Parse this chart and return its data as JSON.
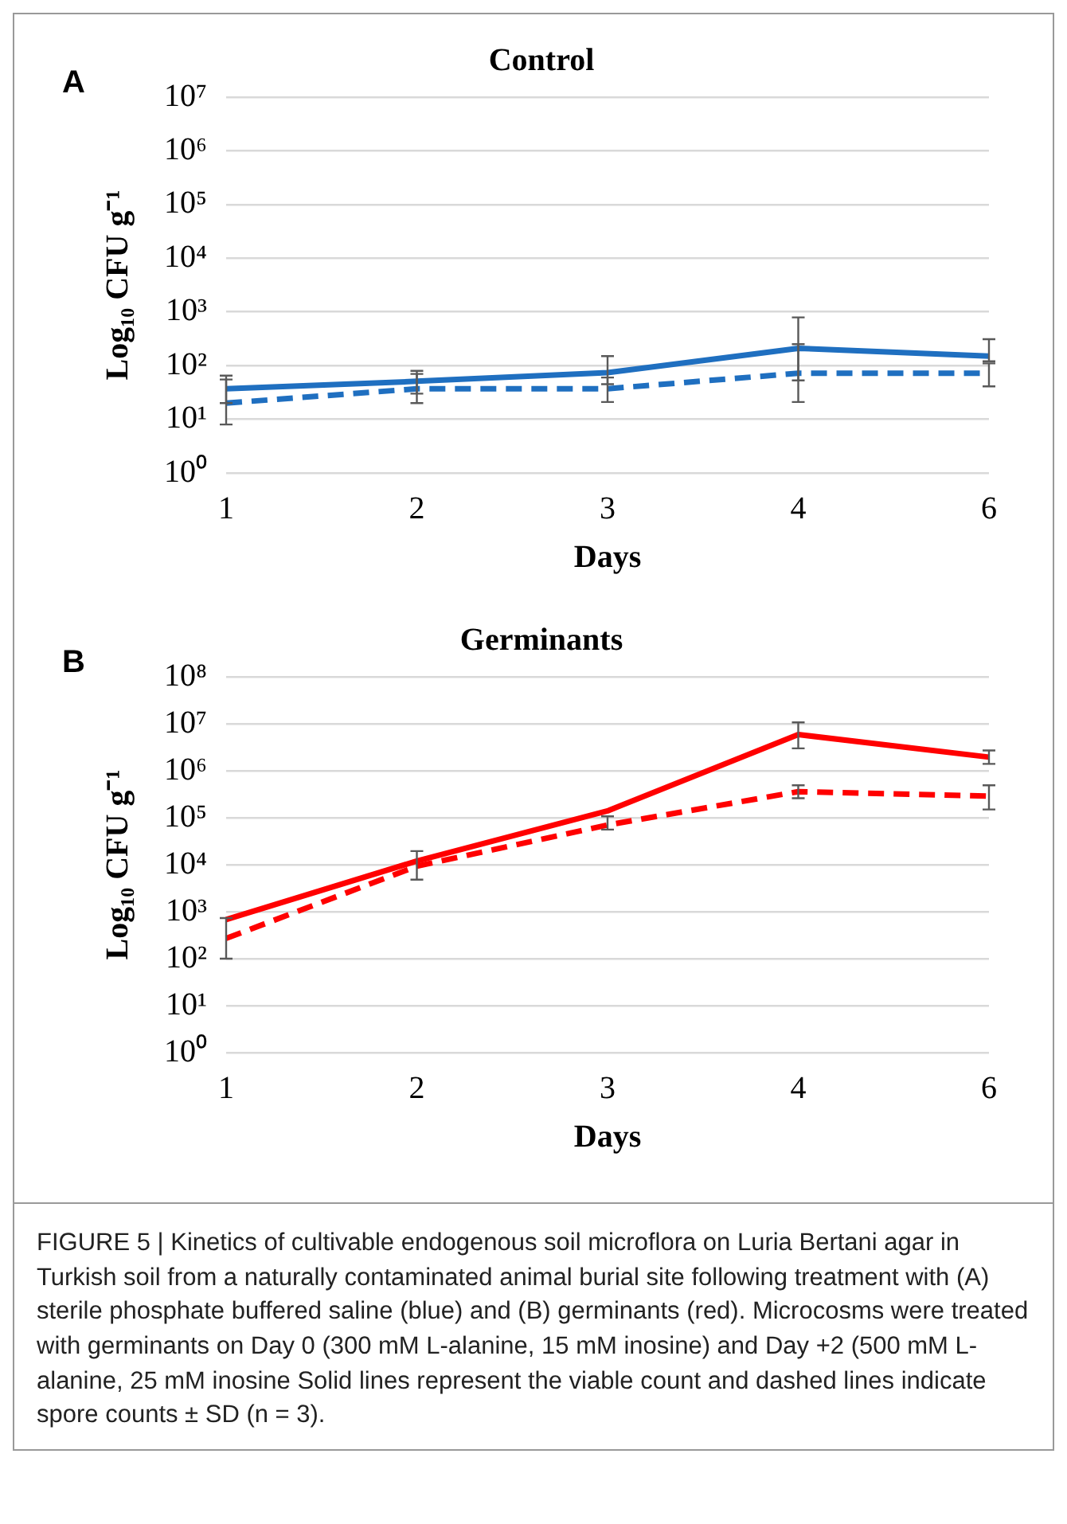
{
  "chart_data": [
    {
      "type": "line",
      "title": "Control",
      "xlabel": "Days",
      "ylabel": "Log₁₀ CFU g⁻¹",
      "annotations": [
        "A"
      ],
      "categories": [
        "1",
        "2",
        "3",
        "4",
        "6"
      ],
      "log": "y",
      "grid": "y",
      "marker": "none",
      "ylim": [
        1,
        10000000
      ],
      "yticks": [
        {
          "value": 1,
          "label": "10⁰"
        },
        {
          "value": 10,
          "label": "10¹"
        },
        {
          "value": 100,
          "label": "10²"
        },
        {
          "value": 1000,
          "label": "10³"
        },
        {
          "value": 10000,
          "label": "10⁴"
        },
        {
          "value": 100000,
          "label": "10⁵"
        },
        {
          "value": 1000000,
          "label": "10⁶"
        },
        {
          "value": 10000000,
          "label": "10⁷"
        }
      ],
      "series": [
        {
          "color": "#1f6fc0",
          "line_style": "solid",
          "values": [
            37,
            51,
            74,
            210,
            150
          ],
          "errors": [
            [
              20,
              65
            ],
            [
              30,
              80
            ],
            [
              45,
              150
            ],
            [
              53,
              790
            ],
            [
              120,
              310
            ]
          ]
        },
        {
          "color": "#1f6fc0",
          "line_style": "dashed",
          "values": [
            20,
            37,
            37,
            72,
            72
          ],
          "errors": [
            [
              8,
              55
            ],
            [
              20,
              70
            ],
            [
              21,
              60
            ],
            [
              21,
              250
            ],
            [
              41,
              110
            ]
          ]
        }
      ]
    },
    {
      "type": "line",
      "title": "Germinants",
      "xlabel": "Days",
      "ylabel": "Log₁₀ CFU g⁻¹",
      "categories": [
        "1",
        "2",
        "3",
        "4",
        "6"
      ],
      "log": "y",
      "grid": "y",
      "marker": "none",
      "ylim": [
        1,
        100000000
      ],
      "yticks": [
        {
          "value": 1,
          "label": "10⁰"
        },
        {
          "value": 10,
          "label": "10¹"
        },
        {
          "value": 100,
          "label": "10²"
        },
        {
          "value": 1000,
          "label": "10³"
        },
        {
          "value": 10000,
          "label": "10⁴"
        },
        {
          "value": 100000,
          "label": "10⁵"
        },
        {
          "value": 1000000,
          "label": "10⁶"
        },
        {
          "value": 10000000,
          "label": "10⁷"
        },
        {
          "value": 100000000,
          "label": "10⁸"
        }
      ],
      "annotations": [
        "B",
        "FIGURE 5 | Kinetics of cultivable endogenous soil microflora on Luria Bertani agar in Turkish soil from a naturally contaminated animal burial site following treatment with (A) sterile phosphate buffered saline (blue) and (B) germinants (red). Microcosms were treated with germinants on Day 0 (300 mM L-alanine, 15 mM inosine) and Day +2 (500 mM L-alanine, 25 mM inosine Solid lines represent the viable count and dashed lines indicate spore counts ± SD (n = 3)."
      ],
      "series": [
        {
          "color": "#ff0000",
          "line_style": "solid",
          "values": [
            680,
            12000,
            140000,
            5900000,
            1950000
          ],
          "errors": [
            null,
            null,
            null,
            [
              3000000,
              10700000
            ],
            [
              1400000,
              2700000
            ]
          ]
        },
        {
          "color": "#ff0000",
          "line_style": "dashed",
          "values": [
            270,
            9300,
            70000,
            360000,
            290000
          ],
          "errors": [
            [
              100,
              730
            ],
            [
              4800,
              19500
            ],
            [
              56000,
              107000
            ],
            [
              260000,
              490000
            ],
            [
              150000,
              490000
            ]
          ]
        }
      ]
    }
  ]
}
